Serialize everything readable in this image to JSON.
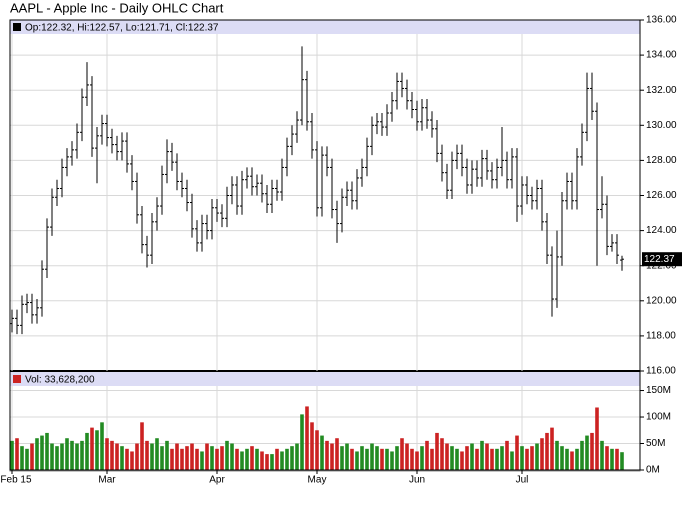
{
  "chart_data": {
    "type": "ohlc",
    "title": "AAPL - Apple Inc - Daily OHLC Chart",
    "price_header": "Op:122.32, Hi:122.57, Lo:121.71, Cl:122.37",
    "volume_header": "Vol: 33,628,200",
    "last_price_label": "122.37",
    "xlim": [
      -0.4,
      125.6
    ],
    "xticks": [
      {
        "value": 0,
        "label": "Feb 15"
      },
      {
        "value": 19,
        "label": "Mar"
      },
      {
        "value": 41,
        "label": "Apr"
      },
      {
        "value": 61,
        "label": "May"
      },
      {
        "value": 81,
        "label": "Jun"
      },
      {
        "value": 102,
        "label": "Jul"
      }
    ],
    "ylim": [
      116,
      136
    ],
    "yticks": [
      {
        "value": 116,
        "label": "116.00"
      },
      {
        "value": 118,
        "label": "118.00"
      },
      {
        "value": 120,
        "label": "120.00"
      },
      {
        "value": 122,
        "label": "122.00"
      },
      {
        "value": 124,
        "label": "124.00"
      },
      {
        "value": 126,
        "label": "126.00"
      },
      {
        "value": 128,
        "label": "128.00"
      },
      {
        "value": 130,
        "label": "130.00"
      },
      {
        "value": 132,
        "label": "132.00"
      },
      {
        "value": 134,
        "label": "134.00"
      },
      {
        "value": 136,
        "label": "136.00"
      }
    ],
    "volume_ylim": [
      0,
      185
    ],
    "volume_yticks": [
      {
        "value": 0,
        "label": "0M"
      },
      {
        "value": 50,
        "label": "50M"
      },
      {
        "value": 100,
        "label": "100M"
      },
      {
        "value": 150,
        "label": "150M"
      }
    ],
    "grid": true,
    "up_color": "#228b22",
    "down_color": "#cc2222",
    "bar_color": "#000000",
    "open": [
      118.7,
      119.0,
      118.6,
      119.8,
      119.9,
      119.2,
      119.6,
      121.8,
      124.2,
      125.9,
      126.4,
      127.6,
      128.2,
      128.6,
      129.6,
      131.6,
      132.3,
      128.7,
      129.4,
      130.1,
      129.3,
      128.9,
      128.5,
      129.1,
      127.8,
      126.8,
      124.9,
      123.2,
      122.6,
      124.5,
      125.4,
      127.2,
      128.5,
      127.9,
      126.8,
      126.4,
      125.6,
      124.1,
      123.3,
      124.4,
      124.0,
      125.3,
      125.0,
      124.7,
      126.0,
      126.6,
      125.4,
      126.9,
      127.1,
      126.5,
      126.7,
      126.1,
      125.5,
      126.4,
      126.2,
      127.6,
      128.8,
      129.5,
      130.3,
      132.6,
      130.2,
      128.6,
      125.3,
      128.3,
      127.6,
      125.2,
      124.4,
      125.9,
      126.3,
      125.7,
      127.0,
      127.6,
      128.8,
      130.0,
      130.2,
      129.9,
      130.7,
      131.4,
      132.5,
      132.1,
      131.4,
      130.9,
      130.2,
      131.0,
      130.3,
      129.8,
      128.4,
      127.3,
      126.3,
      128.0,
      128.4,
      127.6,
      126.6,
      127.5,
      127.0,
      128.1,
      127.4,
      126.9,
      127.6,
      128.0,
      126.9,
      128.2,
      125.4,
      126.6,
      126.0,
      125.7,
      126.4,
      124.5,
      122.6,
      120.1,
      122.5,
      125.7,
      126.8,
      125.7,
      128.2,
      129.6,
      132.1,
      130.8,
      125.2,
      125.5,
      123.1,
      123.3,
      122.32
    ],
    "high": [
      119.5,
      119.5,
      120.3,
      120.4,
      120.4,
      120.1,
      122.3,
      124.7,
      126.4,
      126.9,
      128.1,
      128.7,
      129.1,
      130.1,
      132.1,
      133.6,
      132.8,
      129.9,
      130.6,
      130.6,
      129.8,
      129.4,
      129.6,
      129.6,
      128.3,
      127.3,
      125.4,
      123.7,
      125.0,
      125.9,
      127.7,
      129.2,
      129.0,
      128.4,
      127.3,
      126.9,
      126.1,
      124.6,
      124.9,
      124.9,
      125.8,
      125.8,
      125.5,
      126.5,
      127.1,
      127.1,
      127.4,
      127.6,
      127.6,
      127.2,
      127.2,
      126.6,
      126.9,
      126.9,
      128.1,
      129.3,
      130.0,
      130.8,
      134.5,
      133.1,
      130.7,
      129.1,
      128.8,
      128.8,
      128.1,
      125.7,
      126.4,
      126.8,
      126.8,
      127.5,
      128.1,
      129.3,
      130.5,
      130.7,
      130.7,
      131.2,
      131.9,
      133.0,
      133.0,
      132.6,
      131.9,
      131.4,
      131.5,
      131.5,
      130.8,
      130.3,
      128.9,
      127.8,
      128.5,
      128.9,
      128.9,
      128.1,
      128.0,
      128.0,
      128.6,
      128.6,
      127.9,
      128.1,
      129.9,
      128.5,
      128.7,
      128.7,
      127.1,
      127.1,
      126.5,
      126.9,
      126.9,
      125.0,
      123.1,
      124.0,
      126.2,
      127.3,
      127.3,
      128.7,
      130.1,
      133.0,
      133.0,
      131.3,
      127.1,
      126.0,
      123.8,
      123.8,
      122.57
    ],
    "low": [
      118.2,
      118.1,
      118.1,
      119.3,
      118.7,
      118.7,
      119.1,
      121.3,
      123.7,
      125.4,
      125.9,
      127.1,
      127.7,
      128.1,
      129.1,
      131.1,
      128.2,
      126.7,
      128.9,
      128.8,
      128.4,
      128.0,
      128.0,
      127.3,
      126.3,
      124.4,
      122.7,
      121.9,
      122.1,
      124.0,
      124.9,
      126.7,
      127.4,
      126.3,
      125.9,
      125.1,
      123.6,
      122.8,
      122.8,
      123.5,
      123.5,
      124.5,
      124.2,
      124.2,
      125.5,
      124.9,
      124.9,
      126.4,
      126.0,
      126.0,
      125.6,
      125.0,
      125.0,
      125.7,
      125.7,
      127.1,
      128.3,
      129.0,
      130.0,
      129.7,
      128.1,
      124.8,
      124.8,
      127.1,
      124.7,
      123.3,
      123.9,
      125.4,
      125.2,
      125.2,
      126.5,
      127.1,
      128.3,
      129.5,
      129.4,
      129.4,
      130.2,
      130.9,
      131.6,
      130.9,
      130.4,
      129.7,
      129.7,
      129.8,
      129.3,
      127.9,
      126.8,
      125.8,
      125.8,
      127.5,
      127.1,
      126.1,
      126.1,
      126.5,
      126.5,
      126.9,
      126.4,
      126.4,
      127.1,
      126.4,
      126.4,
      124.5,
      124.9,
      125.5,
      125.2,
      125.2,
      124.0,
      122.1,
      119.1,
      119.6,
      122.0,
      125.2,
      125.2,
      125.2,
      127.7,
      129.1,
      130.3,
      122.0,
      124.7,
      122.6,
      122.8,
      122.1,
      121.71
    ],
    "close": [
      119.0,
      118.6,
      119.8,
      119.9,
      119.2,
      119.6,
      121.8,
      124.2,
      125.9,
      126.4,
      127.6,
      128.2,
      128.6,
      129.6,
      131.6,
      132.3,
      128.7,
      129.4,
      130.1,
      129.3,
      128.9,
      128.5,
      129.1,
      127.8,
      126.8,
      124.9,
      123.2,
      122.6,
      124.5,
      125.4,
      127.2,
      128.5,
      127.9,
      126.8,
      126.4,
      125.6,
      124.1,
      123.3,
      124.4,
      124.0,
      125.3,
      125.0,
      124.7,
      126.0,
      126.6,
      125.4,
      126.9,
      127.1,
      126.5,
      126.7,
      126.1,
      125.5,
      126.4,
      126.2,
      127.6,
      128.8,
      129.5,
      130.3,
      132.6,
      130.2,
      128.6,
      125.3,
      128.3,
      127.6,
      125.2,
      124.4,
      125.9,
      126.3,
      125.7,
      127.0,
      127.6,
      128.8,
      130.0,
      130.2,
      129.9,
      130.7,
      131.4,
      132.5,
      132.1,
      131.4,
      130.9,
      130.2,
      131.0,
      130.3,
      129.8,
      128.4,
      127.3,
      126.3,
      128.0,
      128.4,
      127.6,
      126.6,
      127.5,
      127.0,
      128.1,
      127.4,
      126.9,
      127.6,
      128.0,
      126.9,
      128.2,
      125.4,
      126.6,
      126.0,
      125.7,
      126.4,
      124.5,
      122.6,
      120.1,
      122.5,
      125.7,
      126.8,
      125.7,
      128.2,
      129.6,
      132.1,
      130.8,
      125.2,
      125.5,
      123.1,
      123.3,
      122.6,
      122.37
    ],
    "volume": [
      55,
      60,
      45,
      40,
      50,
      60,
      65,
      70,
      50,
      45,
      50,
      60,
      55,
      50,
      55,
      70,
      80,
      75,
      90,
      60,
      55,
      50,
      45,
      40,
      35,
      50,
      90,
      55,
      50,
      60,
      45,
      55,
      40,
      50,
      40,
      45,
      50,
      40,
      35,
      50,
      45,
      40,
      45,
      55,
      50,
      40,
      35,
      40,
      45,
      40,
      35,
      30,
      30,
      40,
      35,
      40,
      45,
      50,
      105,
      120,
      90,
      75,
      65,
      55,
      50,
      60,
      45,
      50,
      40,
      35,
      45,
      40,
      50,
      45,
      40,
      40,
      35,
      45,
      60,
      50,
      40,
      35,
      45,
      55,
      40,
      70,
      60,
      50,
      45,
      40,
      35,
      45,
      50,
      40,
      55,
      50,
      40,
      40,
      45,
      55,
      35,
      65,
      45,
      40,
      45,
      50,
      60,
      70,
      80,
      55,
      45,
      40,
      35,
      40,
      55,
      65,
      70,
      118,
      55,
      45,
      40,
      40,
      33.6282
    ]
  }
}
